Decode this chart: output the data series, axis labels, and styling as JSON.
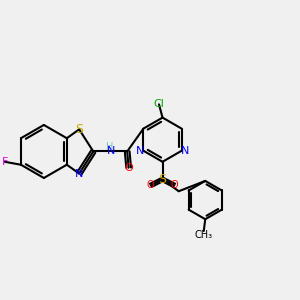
{
  "bg_color": "#f0f0f0",
  "atom_colors": {
    "N": "#0000ff",
    "O": "#ff0000",
    "S": "#ccaa00",
    "F": "#dd00dd",
    "Cl": "#00aa00",
    "C": "#000000",
    "H": "#7fbfbf"
  },
  "bond_color": "#000000",
  "bond_width": 1.5,
  "font_size": 8
}
